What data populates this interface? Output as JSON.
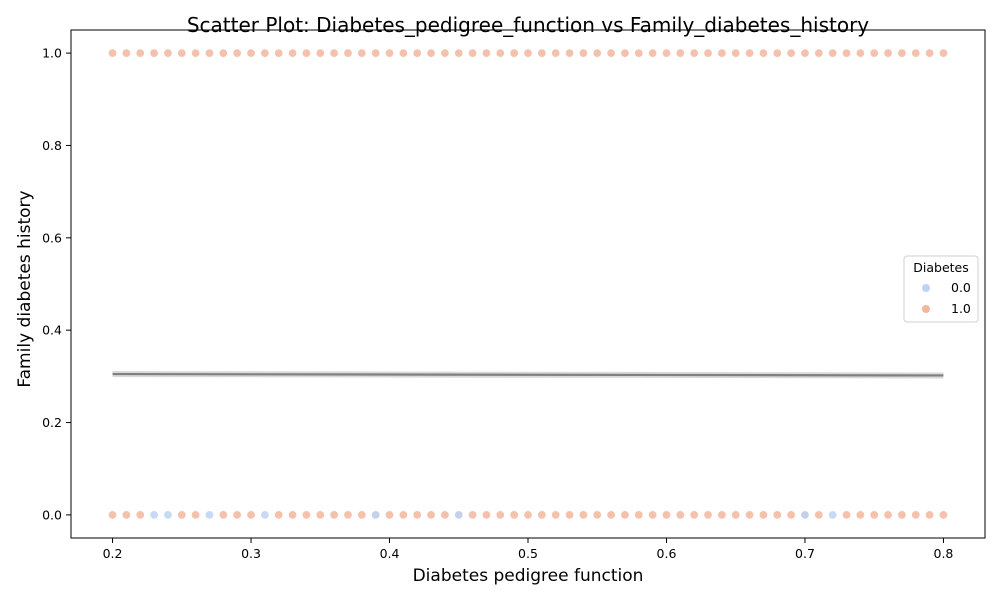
{
  "chart_data": {
    "type": "scatter",
    "title": "Scatter Plot: Diabetes_pedigree_function vs Family_diabetes_history",
    "xlabel": "Diabetes pedigree function",
    "ylabel": "Family diabetes history",
    "xlim": [
      0.17,
      0.83
    ],
    "ylim": [
      -0.05,
      1.05
    ],
    "xticks": [
      0.2,
      0.3,
      0.4,
      0.5,
      0.6,
      0.7,
      0.8
    ],
    "xtick_labels": [
      "0.2",
      "0.3",
      "0.4",
      "0.5",
      "0.6",
      "0.7",
      "0.8"
    ],
    "yticks": [
      0.0,
      0.2,
      0.4,
      0.6,
      0.8,
      1.0
    ],
    "ytick_labels": [
      "0.0",
      "0.2",
      "0.4",
      "0.6",
      "0.8",
      "1.0"
    ],
    "grid": false,
    "legend": {
      "title": "Diabetes",
      "placement": "center-right",
      "entries": [
        {
          "label": "0.0",
          "color": "#bcd4f5"
        },
        {
          "label": "1.0",
          "color": "#f2b79e"
        }
      ]
    },
    "series": [
      {
        "name": "0.0",
        "color": "#bcd4f5",
        "x": [
          0.23,
          0.24,
          0.27,
          0.31,
          0.39,
          0.45,
          0.7,
          0.72
        ],
        "y": [
          0,
          0,
          0,
          0,
          0,
          0,
          0,
          0
        ]
      },
      {
        "name": "1.0",
        "color": "#f2b79e",
        "x": [
          0.2,
          0.21,
          0.22,
          0.23,
          0.24,
          0.25,
          0.26,
          0.27,
          0.28,
          0.29,
          0.3,
          0.31,
          0.32,
          0.33,
          0.34,
          0.35,
          0.36,
          0.37,
          0.38,
          0.39,
          0.4,
          0.41,
          0.42,
          0.43,
          0.44,
          0.45,
          0.46,
          0.47,
          0.48,
          0.49,
          0.5,
          0.51,
          0.52,
          0.53,
          0.54,
          0.55,
          0.56,
          0.57,
          0.58,
          0.59,
          0.6,
          0.61,
          0.62,
          0.63,
          0.64,
          0.65,
          0.66,
          0.67,
          0.68,
          0.69,
          0.7,
          0.71,
          0.72,
          0.73,
          0.74,
          0.75,
          0.76,
          0.77,
          0.78,
          0.79,
          0.8,
          0.2,
          0.21,
          0.22,
          0.25,
          0.26,
          0.28,
          0.29,
          0.3,
          0.32,
          0.33,
          0.34,
          0.35,
          0.36,
          0.37,
          0.38,
          0.39,
          0.4,
          0.41,
          0.42,
          0.43,
          0.44,
          0.45,
          0.46,
          0.47,
          0.48,
          0.49,
          0.5,
          0.51,
          0.52,
          0.53,
          0.54,
          0.55,
          0.56,
          0.57,
          0.58,
          0.59,
          0.6,
          0.61,
          0.62,
          0.63,
          0.64,
          0.65,
          0.66,
          0.67,
          0.68,
          0.69,
          0.7,
          0.71,
          0.73,
          0.74,
          0.75,
          0.76,
          0.77,
          0.78,
          0.79,
          0.8
        ],
        "y": [
          1,
          1,
          1,
          1,
          1,
          1,
          1,
          1,
          1,
          1,
          1,
          1,
          1,
          1,
          1,
          1,
          1,
          1,
          1,
          1,
          1,
          1,
          1,
          1,
          1,
          1,
          1,
          1,
          1,
          1,
          1,
          1,
          1,
          1,
          1,
          1,
          1,
          1,
          1,
          1,
          1,
          1,
          1,
          1,
          1,
          1,
          1,
          1,
          1,
          1,
          1,
          1,
          1,
          1,
          1,
          1,
          1,
          1,
          1,
          1,
          1,
          0,
          0,
          0,
          0,
          0,
          0,
          0,
          0,
          0,
          0,
          0,
          0,
          0,
          0,
          0,
          0,
          0,
          0,
          0,
          0,
          0,
          0,
          0,
          0,
          0,
          0,
          0,
          0,
          0,
          0,
          0,
          0,
          0,
          0,
          0,
          0,
          0,
          0,
          0,
          0,
          0,
          0,
          0,
          0,
          0,
          0,
          0,
          0,
          0,
          0,
          0,
          0,
          0,
          0,
          0,
          0
        ]
      }
    ],
    "regression_line": {
      "color": "#808080",
      "x": [
        0.2,
        0.8
      ],
      "y": [
        0.305,
        0.302
      ]
    }
  }
}
